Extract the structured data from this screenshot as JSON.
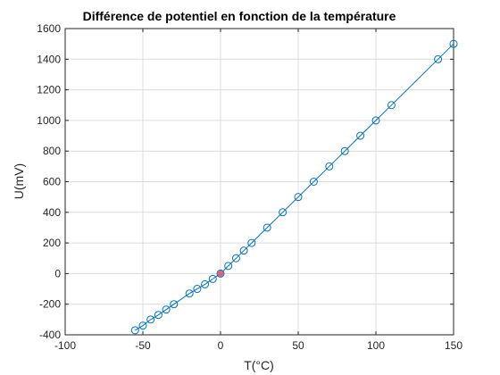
{
  "chart_data": {
    "type": "line",
    "title": "Différence de potentiel en fonction de la température",
    "xlabel": "T(°C)",
    "ylabel": "U(mV)",
    "xlim": [
      -100,
      150
    ],
    "ylim": [
      -400,
      1600
    ],
    "xticks": [
      -100,
      -50,
      0,
      50,
      100,
      150
    ],
    "yticks": [
      -400,
      -200,
      0,
      200,
      400,
      600,
      800,
      1000,
      1200,
      1400,
      1600
    ],
    "xtick_labels": [
      "-100",
      "-50",
      "0",
      "50",
      "100",
      "150"
    ],
    "ytick_labels": [
      "-400",
      "-200",
      "0",
      "200",
      "400",
      "600",
      "800",
      "1000",
      "1200",
      "1400",
      "1600"
    ],
    "grid": true,
    "series": [
      {
        "marker": "circle",
        "color": "#0072bd",
        "x": [
          -55,
          -50,
          -45,
          -40,
          -35,
          -30,
          -20,
          -15,
          -10,
          -5,
          0,
          5,
          10,
          15,
          20,
          30,
          40,
          50,
          60,
          70,
          80,
          90,
          100,
          110,
          140,
          150
        ],
        "y": [
          -370,
          -340,
          -300,
          -270,
          -235,
          -200,
          -130,
          -100,
          -70,
          -35,
          0,
          50,
          100,
          150,
          200,
          300,
          400,
          500,
          600,
          700,
          800,
          900,
          1000,
          1100,
          1400,
          1500
        ]
      }
    ],
    "highlight": {
      "x": 0,
      "y": 0,
      "color": "#e0607e"
    }
  }
}
